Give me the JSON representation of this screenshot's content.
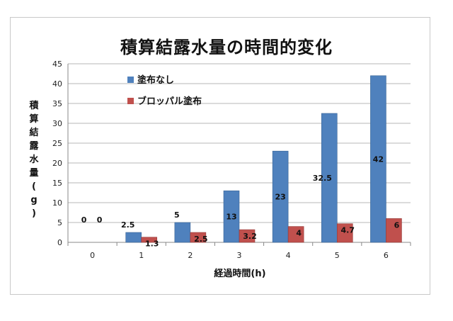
{
  "chart_data": {
    "type": "bar",
    "title": "積算結露水量の時間的変化",
    "xlabel": "経過時間(h)",
    "ylabel": "積算結露水量(g)",
    "categories": [
      "0",
      "1",
      "2",
      "3",
      "4",
      "5",
      "6"
    ],
    "series": [
      {
        "name": "塗布なし",
        "color": "#4f81bd",
        "values": [
          0,
          2.5,
          5,
          13,
          23,
          32.5,
          42
        ],
        "labels": [
          "0",
          "2.5",
          "5",
          "13",
          "23",
          "32.5",
          "42"
        ]
      },
      {
        "name": "ブロッパル塗布",
        "color": "#c0504d",
        "values": [
          0,
          1.3,
          2.5,
          3.2,
          4,
          4.7,
          6
        ],
        "labels": [
          "0",
          "1.3",
          "2.5",
          "3.2",
          "4",
          "4.7",
          "6"
        ]
      }
    ],
    "ylim": [
      0,
      45
    ],
    "yticks": [
      0,
      5,
      10,
      15,
      20,
      25,
      30,
      35,
      40,
      45
    ],
    "grid": true,
    "legend_position": "top-left"
  }
}
